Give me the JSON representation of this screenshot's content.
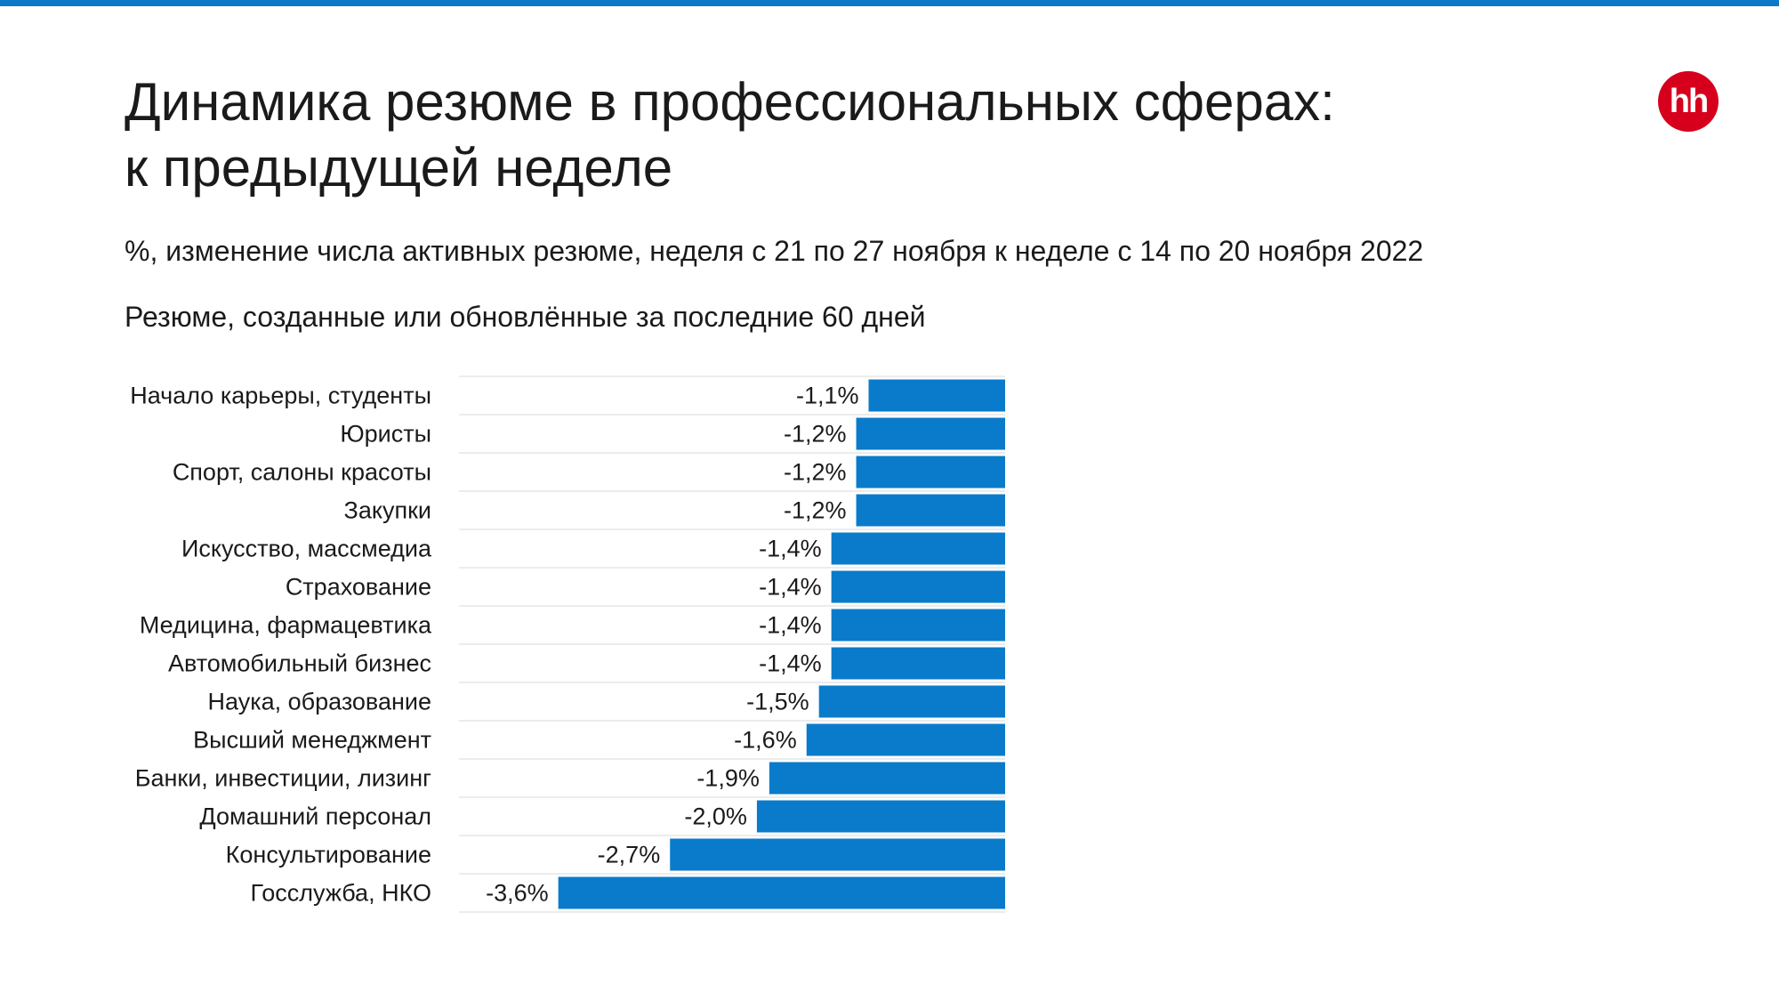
{
  "header": {
    "title_line1": "Динамика резюме в профессиональных сферах:",
    "title_line2": "к предыдущей неделе",
    "subtitle": "%, изменение числа активных резюме, неделя с 21 по 27 ноября к неделе с 14 по 20 ноября 2022",
    "note": "Резюме, созданные или обновлённые за последние 60 дней"
  },
  "logo": {
    "text": "hh",
    "color": "#D6001C"
  },
  "colors": {
    "accent": "#0B78C8",
    "bar": "#0A7BCB",
    "grid": "#E6E6E6"
  },
  "chart_data": {
    "type": "bar",
    "orientation": "horizontal",
    "categories": [
      "Начало карьеры, студенты",
      "Юристы",
      "Спорт, салоны красоты",
      "Закупки",
      "Искусство, массмедиа",
      "Страхование",
      "Медицина, фармацевтика",
      "Автомобильный бизнес",
      "Наука, образование",
      "Высший менеджмент",
      "Банки, инвестиции, лизинг",
      "Домашний персонал",
      "Консультирование",
      "Госслужба, НКО"
    ],
    "values": [
      -1.1,
      -1.2,
      -1.2,
      -1.2,
      -1.4,
      -1.4,
      -1.4,
      -1.4,
      -1.5,
      -1.6,
      -1.9,
      -2.0,
      -2.7,
      -3.6
    ],
    "data_labels": [
      "-1,1%",
      "-1,2%",
      "-1,2%",
      "-1,2%",
      "-1,4%",
      "-1,4%",
      "-1,4%",
      "-1,4%",
      "-1,5%",
      "-1,6%",
      "-1,9%",
      "-2,0%",
      "-2,7%",
      "-3,6%"
    ],
    "xlim": [
      -4.4,
      0
    ]
  }
}
